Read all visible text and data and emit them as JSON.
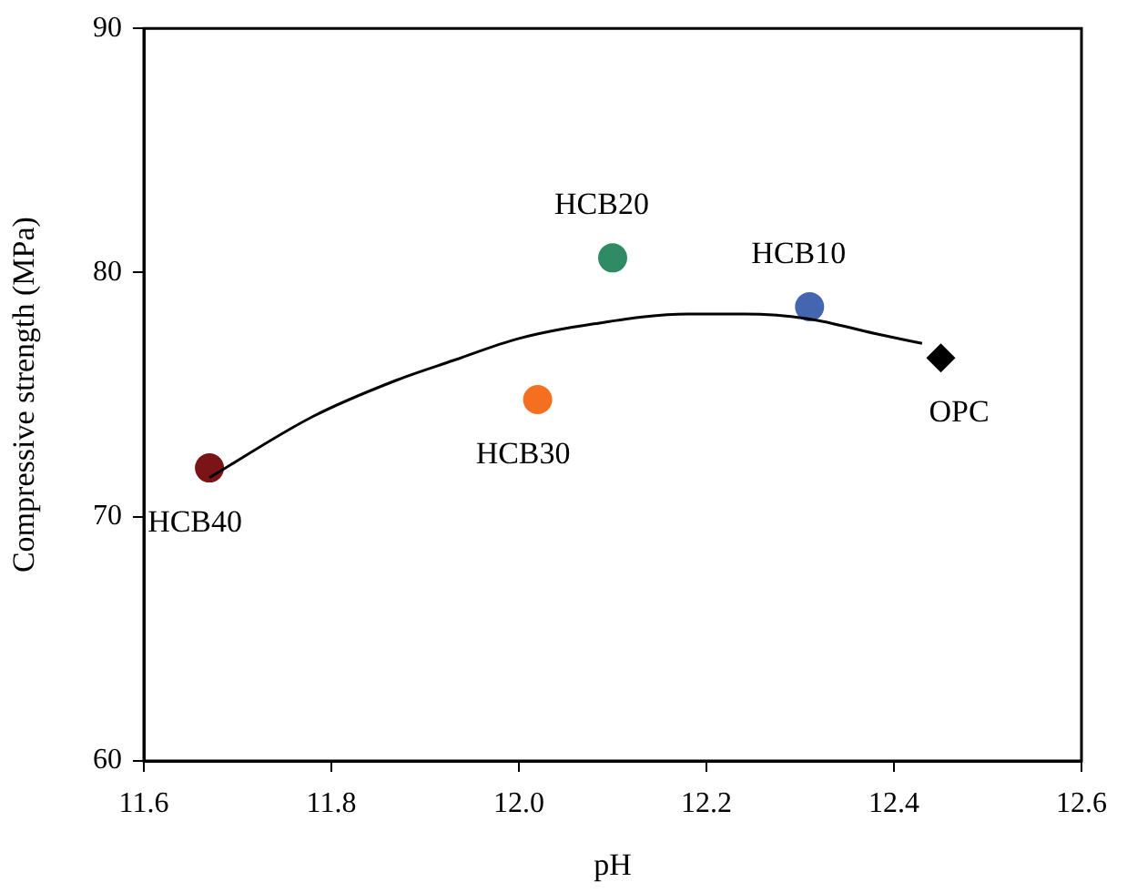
{
  "chart_data": {
    "type": "scatter",
    "xlabel": "pH",
    "ylabel": "Compressive strength (MPa)",
    "xlim": [
      11.6,
      12.6
    ],
    "xticks": [
      11.6,
      11.8,
      {
        "value": 12,
        "label": "12.0"
      },
      12.2,
      12.4,
      12.6
    ],
    "ylim": [
      60,
      90
    ],
    "yticks": [
      60,
      70,
      80,
      90
    ],
    "grid": false,
    "legend": false,
    "series": [
      {
        "name": "HCB40",
        "color": "#7b1416",
        "marker": "circle",
        "x": [
          11.67
        ],
        "values": [
          72.0
        ]
      },
      {
        "name": "HCB30",
        "color": "#f47020",
        "marker": "circle",
        "x": [
          12.02
        ],
        "values": [
          74.8
        ]
      },
      {
        "name": "HCB20",
        "color": "#2e8b63",
        "marker": "circle",
        "x": [
          12.1
        ],
        "values": [
          80.6
        ]
      },
      {
        "name": "HCB10",
        "color": "#4466b0",
        "marker": "circle",
        "x": [
          12.31
        ],
        "values": [
          78.6
        ]
      },
      {
        "name": "OPC",
        "color": "#000000",
        "marker": "diamond",
        "x": [
          12.45
        ],
        "values": [
          76.5
        ]
      },
      {
        "type": "line",
        "color": "#000000",
        "marker": "none",
        "line_style": "solid",
        "x": [
          11.67,
          11.78,
          11.87,
          11.93,
          12.0,
          12.08,
          12.18,
          12.24,
          12.31,
          12.38,
          12.43
        ],
        "values": [
          71.6,
          74.1,
          75.6,
          76.4,
          77.3,
          77.9,
          78.3,
          78.3,
          78.1,
          77.5,
          77.1
        ]
      }
    ]
  }
}
